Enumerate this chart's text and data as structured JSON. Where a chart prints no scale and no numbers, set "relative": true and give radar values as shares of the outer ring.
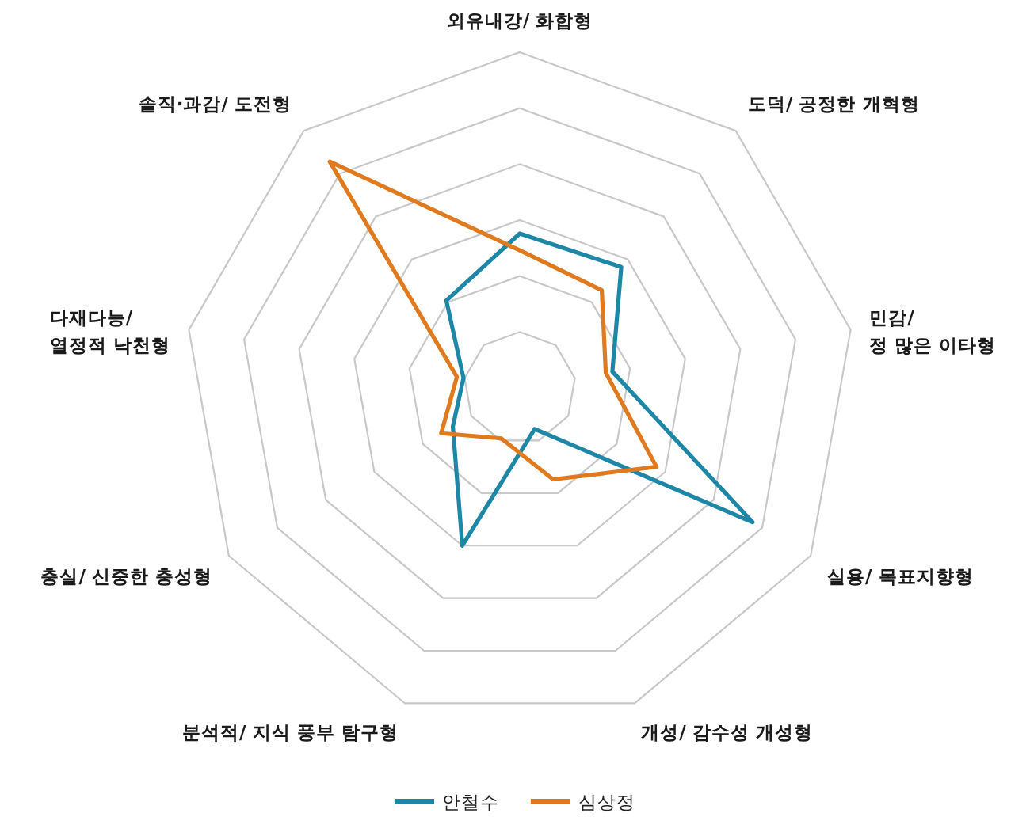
{
  "chart_data": {
    "type": "radar",
    "relative": true,
    "categories": [
      "외유내강/ 화합형",
      "도덕/ 공정한 개혁형",
      "민감/\n정 많은 이타형",
      "실용/ 목표지향형",
      "개성/ 감수성 개성형",
      "분석적/ 지식 풍부 탐구형",
      "충실/ 신중한 충성형",
      "다재다능/\n열정적 낙천형",
      "솔직·과감/ 도전형"
    ],
    "series": [
      {
        "name": "안철수",
        "color": "#1f87a6",
        "values": [
          0.46,
          0.47,
          0.28,
          0.8,
          0.13,
          0.5,
          0.23,
          0.17,
          0.34
        ]
      },
      {
        "name": "심상정",
        "color": "#e07a1f",
        "values": [
          0.41,
          0.38,
          0.26,
          0.47,
          0.29,
          0.16,
          0.27,
          0.19,
          0.88
        ]
      }
    ],
    "grid": true,
    "legend": "bottom",
    "line_style": "solid"
  }
}
